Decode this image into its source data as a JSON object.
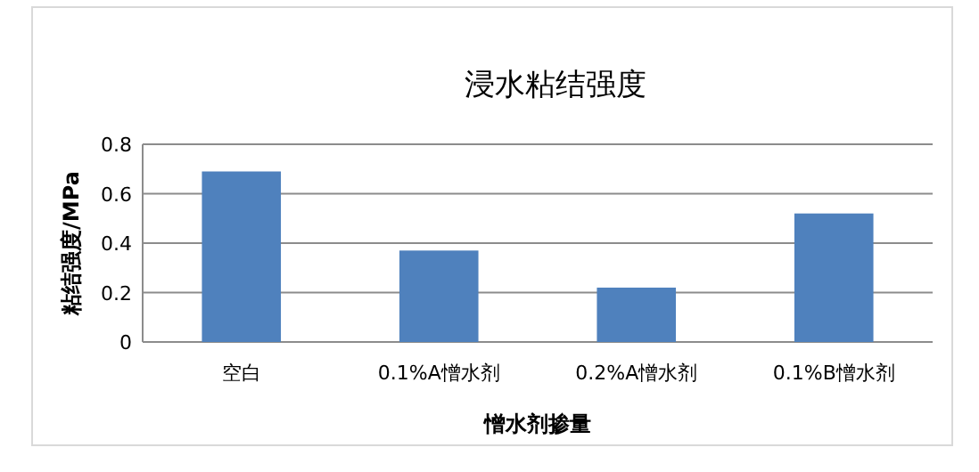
{
  "chart_data": {
    "type": "bar",
    "title": "浸水粘结强度",
    "xlabel": "憎水剂掺量",
    "ylabel": "粘结强度/MPa",
    "categories": [
      "空白",
      "0.1%A憎水剂",
      "0.2%A憎水剂",
      "0.1%B憎水剂"
    ],
    "values": [
      0.69,
      0.37,
      0.22,
      0.52
    ],
    "color": "#4f81bd",
    "ylim": [
      0,
      0.8
    ],
    "yticks": [
      0,
      0.2,
      0.4,
      0.6,
      0.8
    ],
    "grid": "y"
  }
}
